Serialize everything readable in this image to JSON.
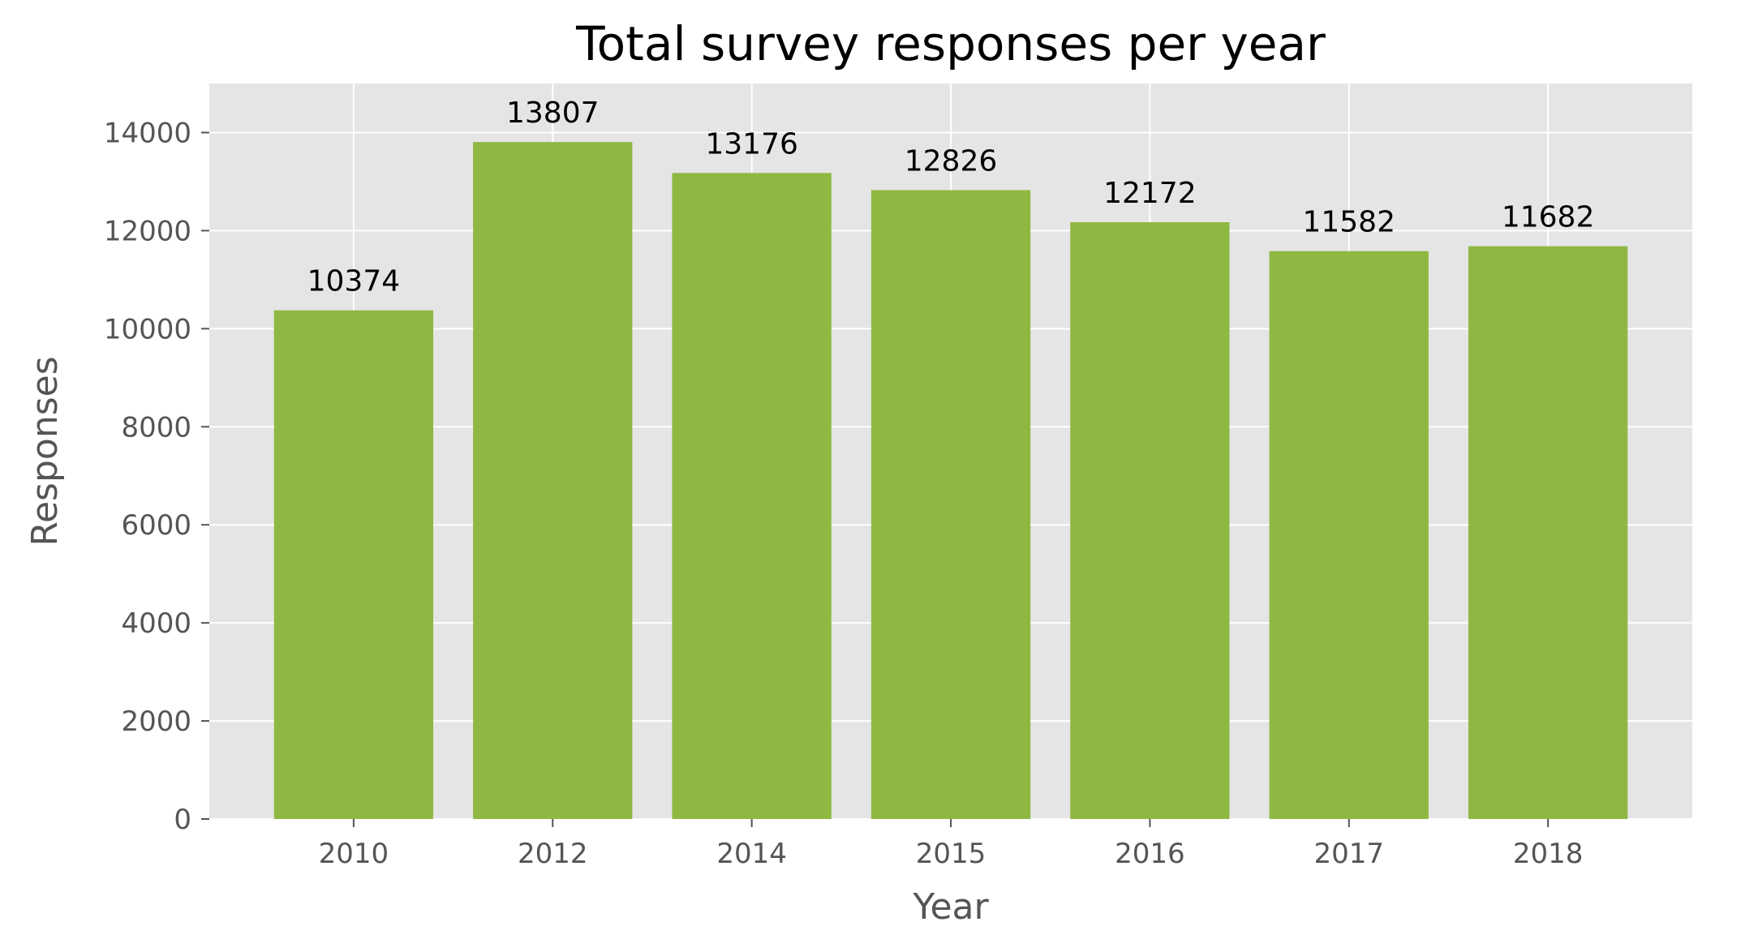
{
  "chart_data": {
    "type": "bar",
    "title": "Total survey responses per year",
    "xlabel": "Year",
    "ylabel": "Responses",
    "categories": [
      "2010",
      "2012",
      "2014",
      "2015",
      "2016",
      "2017",
      "2018"
    ],
    "values": [
      10374,
      13807,
      13176,
      12826,
      12172,
      11582,
      11682
    ],
    "data_labels": [
      "10374",
      "13807",
      "13176",
      "12826",
      "12172",
      "11582",
      "11682"
    ],
    "ylim": [
      0,
      15000
    ],
    "yticks": [
      0,
      2000,
      4000,
      6000,
      8000,
      10000,
      12000,
      14000
    ],
    "ytick_labels": [
      "0",
      "2000",
      "4000",
      "6000",
      "8000",
      "10000",
      "12000",
      "14000"
    ],
    "grid": true,
    "legend": "none",
    "colors": {
      "bar": "#8fb843",
      "plot_background": "#e5e5e5",
      "grid": "#ffffff",
      "tick_text": "#555555",
      "title_text": "#000000"
    }
  }
}
